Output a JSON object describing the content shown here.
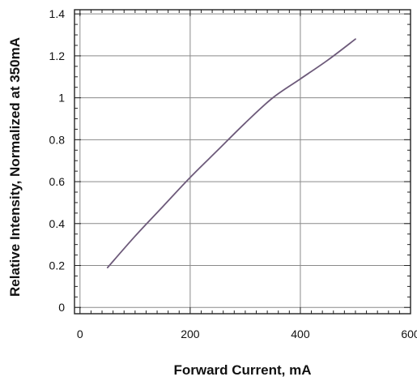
{
  "chart_data": {
    "type": "line",
    "title": "",
    "xlabel": "Forward Current, mA",
    "ylabel": "Relative Intensity, Normalized at 350mA",
    "xlim": [
      -10,
      600
    ],
    "ylim": [
      -0.03,
      1.42
    ],
    "x_ticks": [
      "0",
      "200",
      "400",
      "600"
    ],
    "y_ticks": [
      "0",
      "0.2",
      "0.4",
      "0.6",
      "0.8",
      "1",
      "1.2",
      "1.4"
    ],
    "grid": true,
    "series": [
      {
        "color": "#6d5a7a",
        "points": [
          {
            "x": 50,
            "y": 0.19
          },
          {
            "x": 100,
            "y": 0.34
          },
          {
            "x": 150,
            "y": 0.48
          },
          {
            "x": 200,
            "y": 0.62
          },
          {
            "x": 250,
            "y": 0.75
          },
          {
            "x": 300,
            "y": 0.88
          },
          {
            "x": 350,
            "y": 1.0
          },
          {
            "x": 400,
            "y": 1.09
          },
          {
            "x": 450,
            "y": 1.18
          },
          {
            "x": 500,
            "y": 1.28
          }
        ]
      }
    ]
  }
}
